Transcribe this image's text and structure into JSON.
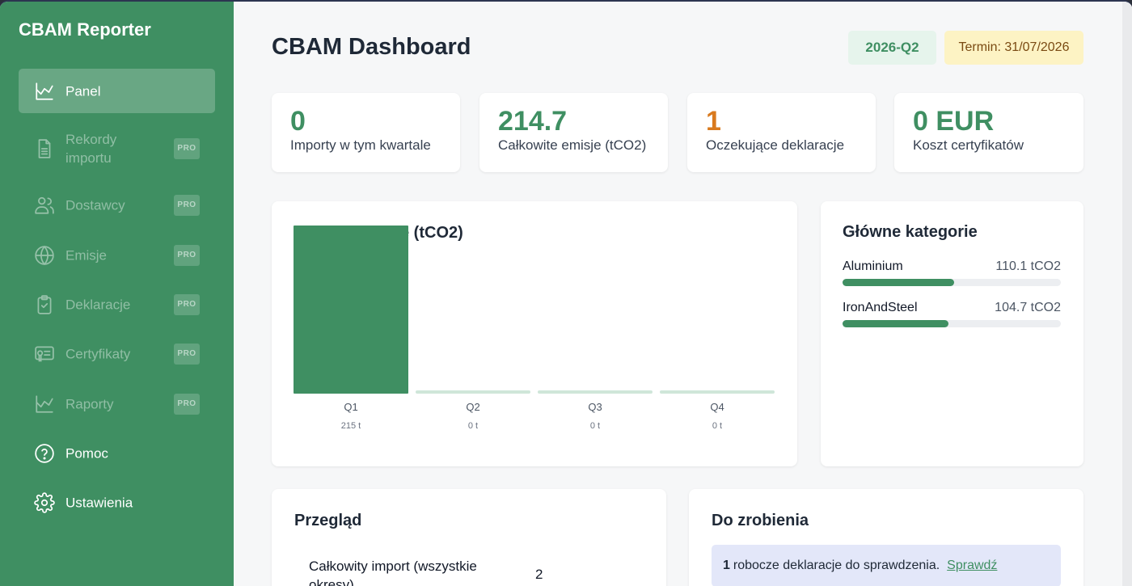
{
  "app": {
    "brand": "CBAM Reporter"
  },
  "sidebar": {
    "items": [
      {
        "label": "Panel",
        "icon": "chart-icon",
        "pro": false,
        "active": true
      },
      {
        "label": "Rekordy importu",
        "icon": "document-icon",
        "pro": true
      },
      {
        "label": "Dostawcy",
        "icon": "users-icon",
        "pro": true
      },
      {
        "label": "Emisje",
        "icon": "globe-icon",
        "pro": true
      },
      {
        "label": "Deklaracje",
        "icon": "clipboard-check-icon",
        "pro": true
      },
      {
        "label": "Certyfikaty",
        "icon": "certificate-icon",
        "pro": true
      },
      {
        "label": "Raporty",
        "icon": "chart-icon",
        "pro": true
      },
      {
        "label": "Pomoc",
        "icon": "help-circle-icon",
        "pro": false
      },
      {
        "label": "Ustawienia",
        "icon": "gear-icon",
        "pro": false
      }
    ],
    "pro_label": "PRO"
  },
  "header": {
    "title": "CBAM Dashboard",
    "quarter": "2026-Q2",
    "deadline": "Termin: 31/07/2026"
  },
  "stats": [
    {
      "value": "0",
      "label": "Importy w tym kwartale",
      "color": "#3f8f62"
    },
    {
      "value": "214.7",
      "label": "Całkowite emisje (tCO2)",
      "color": "#3f8f62"
    },
    {
      "value": "1",
      "label": "Oczekujące deklaracje",
      "color": "#d97a1e"
    },
    {
      "value": "0 EUR",
      "label": "Koszt certyfikatów",
      "color": "#3f8f62"
    }
  ],
  "emissions_chart": {
    "title_visible": "e (tCO2)"
  },
  "chart_data": {
    "type": "bar",
    "categories": [
      "Q1",
      "Q2",
      "Q3",
      "Q4"
    ],
    "values": [
      215,
      0,
      0,
      0
    ],
    "value_labels": [
      "215 t",
      "0 t",
      "0 t",
      "0 t"
    ],
    "title": "e (tCO2)",
    "colors": {
      "active": "#3f8f62",
      "inactive": "#cfe6d9"
    }
  },
  "categories_panel": {
    "title": "Główne kategorie",
    "items": [
      {
        "name": "Aluminium",
        "value_text": "110.1 tCO2",
        "value": 110.1
      },
      {
        "name": "IronAndSteel",
        "value_text": "104.7 tCO2",
        "value": 104.7
      }
    ],
    "bar_max": 215
  },
  "overview": {
    "title": "Przegląd",
    "rows": [
      {
        "label": "Całkowity import (wszystkie okresy)",
        "value": "2"
      }
    ]
  },
  "todo": {
    "title": "Do zrobienia",
    "count": "1",
    "text": "robocze deklaracje do sprawdzenia.",
    "link": "Sprawdź"
  }
}
